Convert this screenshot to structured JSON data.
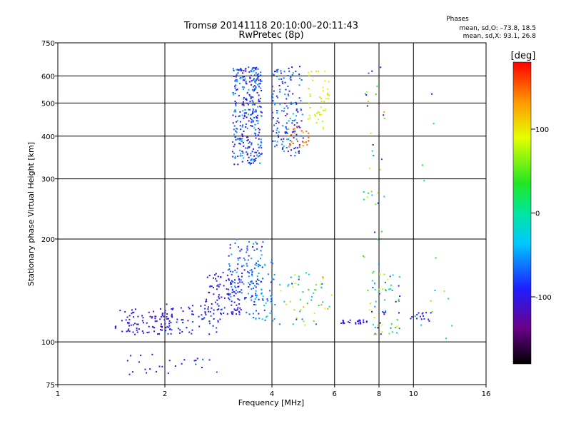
{
  "header": {
    "title_line1": "Tromsø 20141118 20:10:00–20:11:43",
    "title_line2": "RwPretec (8p)",
    "phases_title": "Phases",
    "phases_o": "mean, sd,O: –73.8, 18.5",
    "phases_x": "mean, sd,X:  93.1, 26.8"
  },
  "chart_data": {
    "type": "scatter",
    "xlabel": "Frequency [MHz]",
    "ylabel": "Stationary phase Virtual Height [km]",
    "xscale": "log",
    "yscale": "log",
    "xlim": [
      1,
      16
    ],
    "ylim": [
      75,
      750
    ],
    "xticks": [
      1,
      2,
      4,
      6,
      8,
      10,
      16
    ],
    "xtick_labels": [
      "1",
      "2",
      "4",
      "6",
      "8",
      "10",
      "16"
    ],
    "yticks": [
      75,
      100,
      200,
      300,
      400,
      500,
      600,
      750
    ],
    "ytick_labels": [
      "75",
      "100",
      "200",
      "300",
      "400",
      "500",
      "600",
      "750"
    ],
    "grid": true,
    "colorbar": {
      "label": "[deg]",
      "range": [
        -180,
        180
      ],
      "ticks": [
        100,
        0,
        -100
      ],
      "tick_labels": [
        "100",
        "0",
        "-100"
      ]
    },
    "clusters": [
      {
        "f": [
          1.45,
          2.1
        ],
        "h": [
          105,
          125
        ],
        "phase": [
          -120,
          -90
        ],
        "n": 90
      },
      {
        "f": [
          2.0,
          2.9
        ],
        "h": [
          105,
          130
        ],
        "phase": [
          -115,
          -70
        ],
        "n": 70
      },
      {
        "f": [
          2.6,
          3.3
        ],
        "h": [
          120,
          160
        ],
        "phase": [
          -120,
          -80
        ],
        "n": 90
      },
      {
        "f": [
          3.0,
          3.8
        ],
        "h": [
          120,
          200
        ],
        "phase": [
          -110,
          -40
        ],
        "n": 120
      },
      {
        "f": [
          3.5,
          4.1
        ],
        "h": [
          115,
          175
        ],
        "phase": [
          -80,
          -20
        ],
        "n": 60
      },
      {
        "f": [
          1.5,
          2.3
        ],
        "h": [
          80,
          92
        ],
        "phase": [
          -120,
          -95
        ],
        "n": 18
      },
      {
        "f": [
          2.4,
          2.8
        ],
        "h": [
          80,
          90
        ],
        "phase": [
          -100,
          -60
        ],
        "n": 8
      },
      {
        "f": [
          4.2,
          5.9
        ],
        "h": [
          112,
          160
        ],
        "phase": [
          -100,
          140
        ],
        "n": 55
      },
      {
        "f": [
          6.2,
          7.4
        ],
        "h": [
          113,
          116
        ],
        "phase": [
          -110,
          -90
        ],
        "n": 25
      },
      {
        "f": [
          7.6,
          9.2
        ],
        "h": [
          105,
          160
        ],
        "phase": [
          -120,
          120
        ],
        "n": 55
      },
      {
        "f": [
          9.8,
          11.3
        ],
        "h": [
          115,
          122
        ],
        "phase": [
          -110,
          -80
        ],
        "n": 15
      },
      {
        "f": [
          3.1,
          3.75
        ],
        "h": [
          330,
          640
        ],
        "phase": [
          -120,
          -40
        ],
        "n": 340
      },
      {
        "f": [
          4.0,
          4.9
        ],
        "h": [
          350,
          640
        ],
        "phase": [
          -120,
          -40
        ],
        "n": 160
      },
      {
        "f": [
          4.4,
          5.1
        ],
        "h": [
          370,
          430
        ],
        "phase": [
          120,
          170
        ],
        "n": 25
      },
      {
        "f": [
          5.0,
          5.8
        ],
        "h": [
          420,
          620
        ],
        "phase": [
          75,
          110
        ],
        "n": 45
      },
      {
        "f": [
          7.2,
          8.3
        ],
        "h": [
          100,
          640
        ],
        "phase": [
          -150,
          140
        ],
        "n": 45
      },
      {
        "f": [
          10.0,
          13.0
        ],
        "h": [
          100,
          600
        ],
        "phase": [
          -110,
          80
        ],
        "n": 14
      }
    ]
  }
}
